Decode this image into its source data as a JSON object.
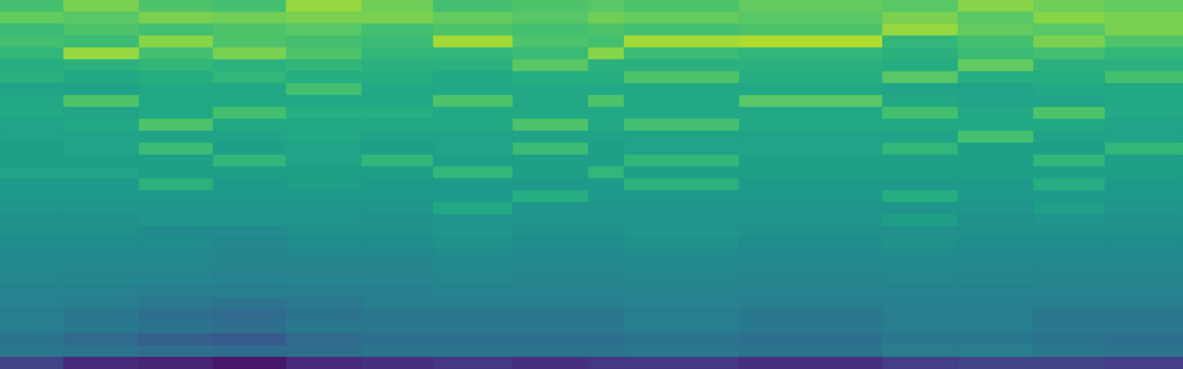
{
  "chart_data": {
    "type": "heatmap",
    "color": "viridis",
    "tick_labels": false,
    "xlim": [
      0,
      1488
    ],
    "ylim": [
      0,
      465
    ],
    "zlim": [
      0,
      1
    ],
    "x_bins": [
      0,
      80,
      175,
      268,
      360,
      455,
      545,
      645,
      740,
      785,
      930,
      1110,
      1205,
      1300,
      1390,
      1488
    ],
    "y_bins": [
      0,
      15,
      30,
      45,
      60,
      75,
      90,
      105,
      120,
      135,
      150,
      165,
      180,
      195,
      210,
      225,
      240,
      255,
      270,
      285,
      300,
      315,
      330,
      345,
      360,
      375,
      390,
      405,
      420,
      435,
      450,
      465
    ],
    "cells": [
      [
        0.7,
        0.8,
        0.72,
        0.7,
        0.84,
        0.78,
        0.7,
        0.72,
        0.74,
        0.72,
        0.76,
        0.74,
        0.82,
        0.78,
        0.76
      ],
      [
        0.76,
        0.74,
        0.8,
        0.78,
        0.8,
        0.8,
        0.76,
        0.74,
        0.78,
        0.76,
        0.74,
        0.8,
        0.74,
        0.82,
        0.8
      ],
      [
        0.68,
        0.72,
        0.7,
        0.72,
        0.74,
        0.7,
        0.72,
        0.7,
        0.72,
        0.7,
        0.72,
        0.84,
        0.76,
        0.74,
        0.8
      ],
      [
        0.7,
        0.68,
        0.82,
        0.72,
        0.7,
        0.68,
        0.86,
        0.72,
        0.7,
        0.86,
        0.88,
        0.66,
        0.7,
        0.8,
        0.72
      ],
      [
        0.66,
        0.84,
        0.7,
        0.8,
        0.72,
        0.66,
        0.66,
        0.68,
        0.82,
        0.68,
        0.66,
        0.64,
        0.68,
        0.7,
        0.66
      ],
      [
        0.62,
        0.64,
        0.66,
        0.64,
        0.66,
        0.64,
        0.64,
        0.74,
        0.64,
        0.64,
        0.64,
        0.62,
        0.76,
        0.64,
        0.64
      ],
      [
        0.64,
        0.6,
        0.62,
        0.66,
        0.62,
        0.62,
        0.6,
        0.62,
        0.62,
        0.72,
        0.62,
        0.74,
        0.62,
        0.62,
        0.7
      ],
      [
        0.58,
        0.58,
        0.6,
        0.6,
        0.7,
        0.6,
        0.6,
        0.6,
        0.6,
        0.6,
        0.6,
        0.58,
        0.58,
        0.6,
        0.6
      ],
      [
        0.6,
        0.72,
        0.6,
        0.6,
        0.6,
        0.6,
        0.72,
        0.6,
        0.72,
        0.6,
        0.74,
        0.6,
        0.58,
        0.58,
        0.6
      ],
      [
        0.6,
        0.58,
        0.6,
        0.7,
        0.62,
        0.62,
        0.6,
        0.6,
        0.6,
        0.6,
        0.6,
        0.7,
        0.6,
        0.72,
        0.6
      ],
      [
        0.58,
        0.6,
        0.72,
        0.6,
        0.6,
        0.6,
        0.6,
        0.72,
        0.6,
        0.7,
        0.6,
        0.6,
        0.6,
        0.6,
        0.58
      ],
      [
        0.58,
        0.58,
        0.58,
        0.58,
        0.6,
        0.58,
        0.58,
        0.58,
        0.58,
        0.58,
        0.58,
        0.58,
        0.7,
        0.58,
        0.58
      ],
      [
        0.56,
        0.58,
        0.68,
        0.56,
        0.58,
        0.56,
        0.58,
        0.68,
        0.56,
        0.58,
        0.58,
        0.66,
        0.56,
        0.56,
        0.66
      ],
      [
        0.56,
        0.56,
        0.56,
        0.66,
        0.58,
        0.66,
        0.56,
        0.56,
        0.56,
        0.66,
        0.56,
        0.56,
        0.56,
        0.66,
        0.56
      ],
      [
        0.58,
        0.58,
        0.56,
        0.56,
        0.56,
        0.56,
        0.66,
        0.56,
        0.66,
        0.56,
        0.56,
        0.56,
        0.56,
        0.56,
        0.56
      ],
      [
        0.54,
        0.54,
        0.64,
        0.54,
        0.56,
        0.54,
        0.54,
        0.54,
        0.54,
        0.64,
        0.54,
        0.54,
        0.54,
        0.62,
        0.54
      ],
      [
        0.54,
        0.54,
        0.54,
        0.54,
        0.54,
        0.54,
        0.54,
        0.62,
        0.54,
        0.54,
        0.54,
        0.62,
        0.54,
        0.54,
        0.54
      ],
      [
        0.52,
        0.52,
        0.52,
        0.52,
        0.52,
        0.52,
        0.6,
        0.52,
        0.52,
        0.52,
        0.52,
        0.52,
        0.52,
        0.56,
        0.52
      ],
      [
        0.5,
        0.5,
        0.52,
        0.52,
        0.52,
        0.5,
        0.52,
        0.52,
        0.52,
        0.52,
        0.52,
        0.56,
        0.5,
        0.52,
        0.5
      ],
      [
        0.5,
        0.5,
        0.48,
        0.48,
        0.5,
        0.5,
        0.52,
        0.5,
        0.5,
        0.52,
        0.5,
        0.5,
        0.5,
        0.5,
        0.5
      ],
      [
        0.48,
        0.48,
        0.48,
        0.46,
        0.48,
        0.48,
        0.5,
        0.48,
        0.48,
        0.5,
        0.48,
        0.5,
        0.48,
        0.48,
        0.48
      ],
      [
        0.47,
        0.47,
        0.47,
        0.46,
        0.46,
        0.46,
        0.48,
        0.47,
        0.47,
        0.48,
        0.47,
        0.48,
        0.47,
        0.47,
        0.47
      ],
      [
        0.47,
        0.46,
        0.46,
        0.45,
        0.45,
        0.45,
        0.47,
        0.46,
        0.46,
        0.47,
        0.46,
        0.47,
        0.46,
        0.46,
        0.46
      ],
      [
        0.46,
        0.46,
        0.46,
        0.44,
        0.45,
        0.45,
        0.46,
        0.45,
        0.45,
        0.46,
        0.45,
        0.46,
        0.46,
        0.45,
        0.45
      ],
      [
        0.44,
        0.44,
        0.42,
        0.42,
        0.42,
        0.43,
        0.44,
        0.44,
        0.44,
        0.45,
        0.44,
        0.44,
        0.44,
        0.44,
        0.44
      ],
      [
        0.44,
        0.42,
        0.4,
        0.38,
        0.4,
        0.42,
        0.42,
        0.42,
        0.42,
        0.44,
        0.42,
        0.43,
        0.43,
        0.42,
        0.42
      ],
      [
        0.42,
        0.4,
        0.36,
        0.34,
        0.38,
        0.4,
        0.4,
        0.4,
        0.4,
        0.42,
        0.4,
        0.42,
        0.42,
        0.4,
        0.4
      ],
      [
        0.42,
        0.4,
        0.38,
        0.36,
        0.4,
        0.4,
        0.4,
        0.4,
        0.4,
        0.42,
        0.4,
        0.42,
        0.42,
        0.4,
        0.4
      ],
      [
        0.38,
        0.34,
        0.3,
        0.28,
        0.34,
        0.36,
        0.36,
        0.36,
        0.36,
        0.38,
        0.36,
        0.4,
        0.4,
        0.38,
        0.36
      ],
      [
        0.4,
        0.38,
        0.36,
        0.34,
        0.36,
        0.38,
        0.38,
        0.38,
        0.38,
        0.4,
        0.38,
        0.42,
        0.42,
        0.4,
        0.38
      ],
      [
        0.2,
        0.12,
        0.1,
        0.06,
        0.12,
        0.14,
        0.16,
        0.14,
        0.16,
        0.16,
        0.14,
        0.18,
        0.2,
        0.2,
        0.18
      ]
    ]
  }
}
